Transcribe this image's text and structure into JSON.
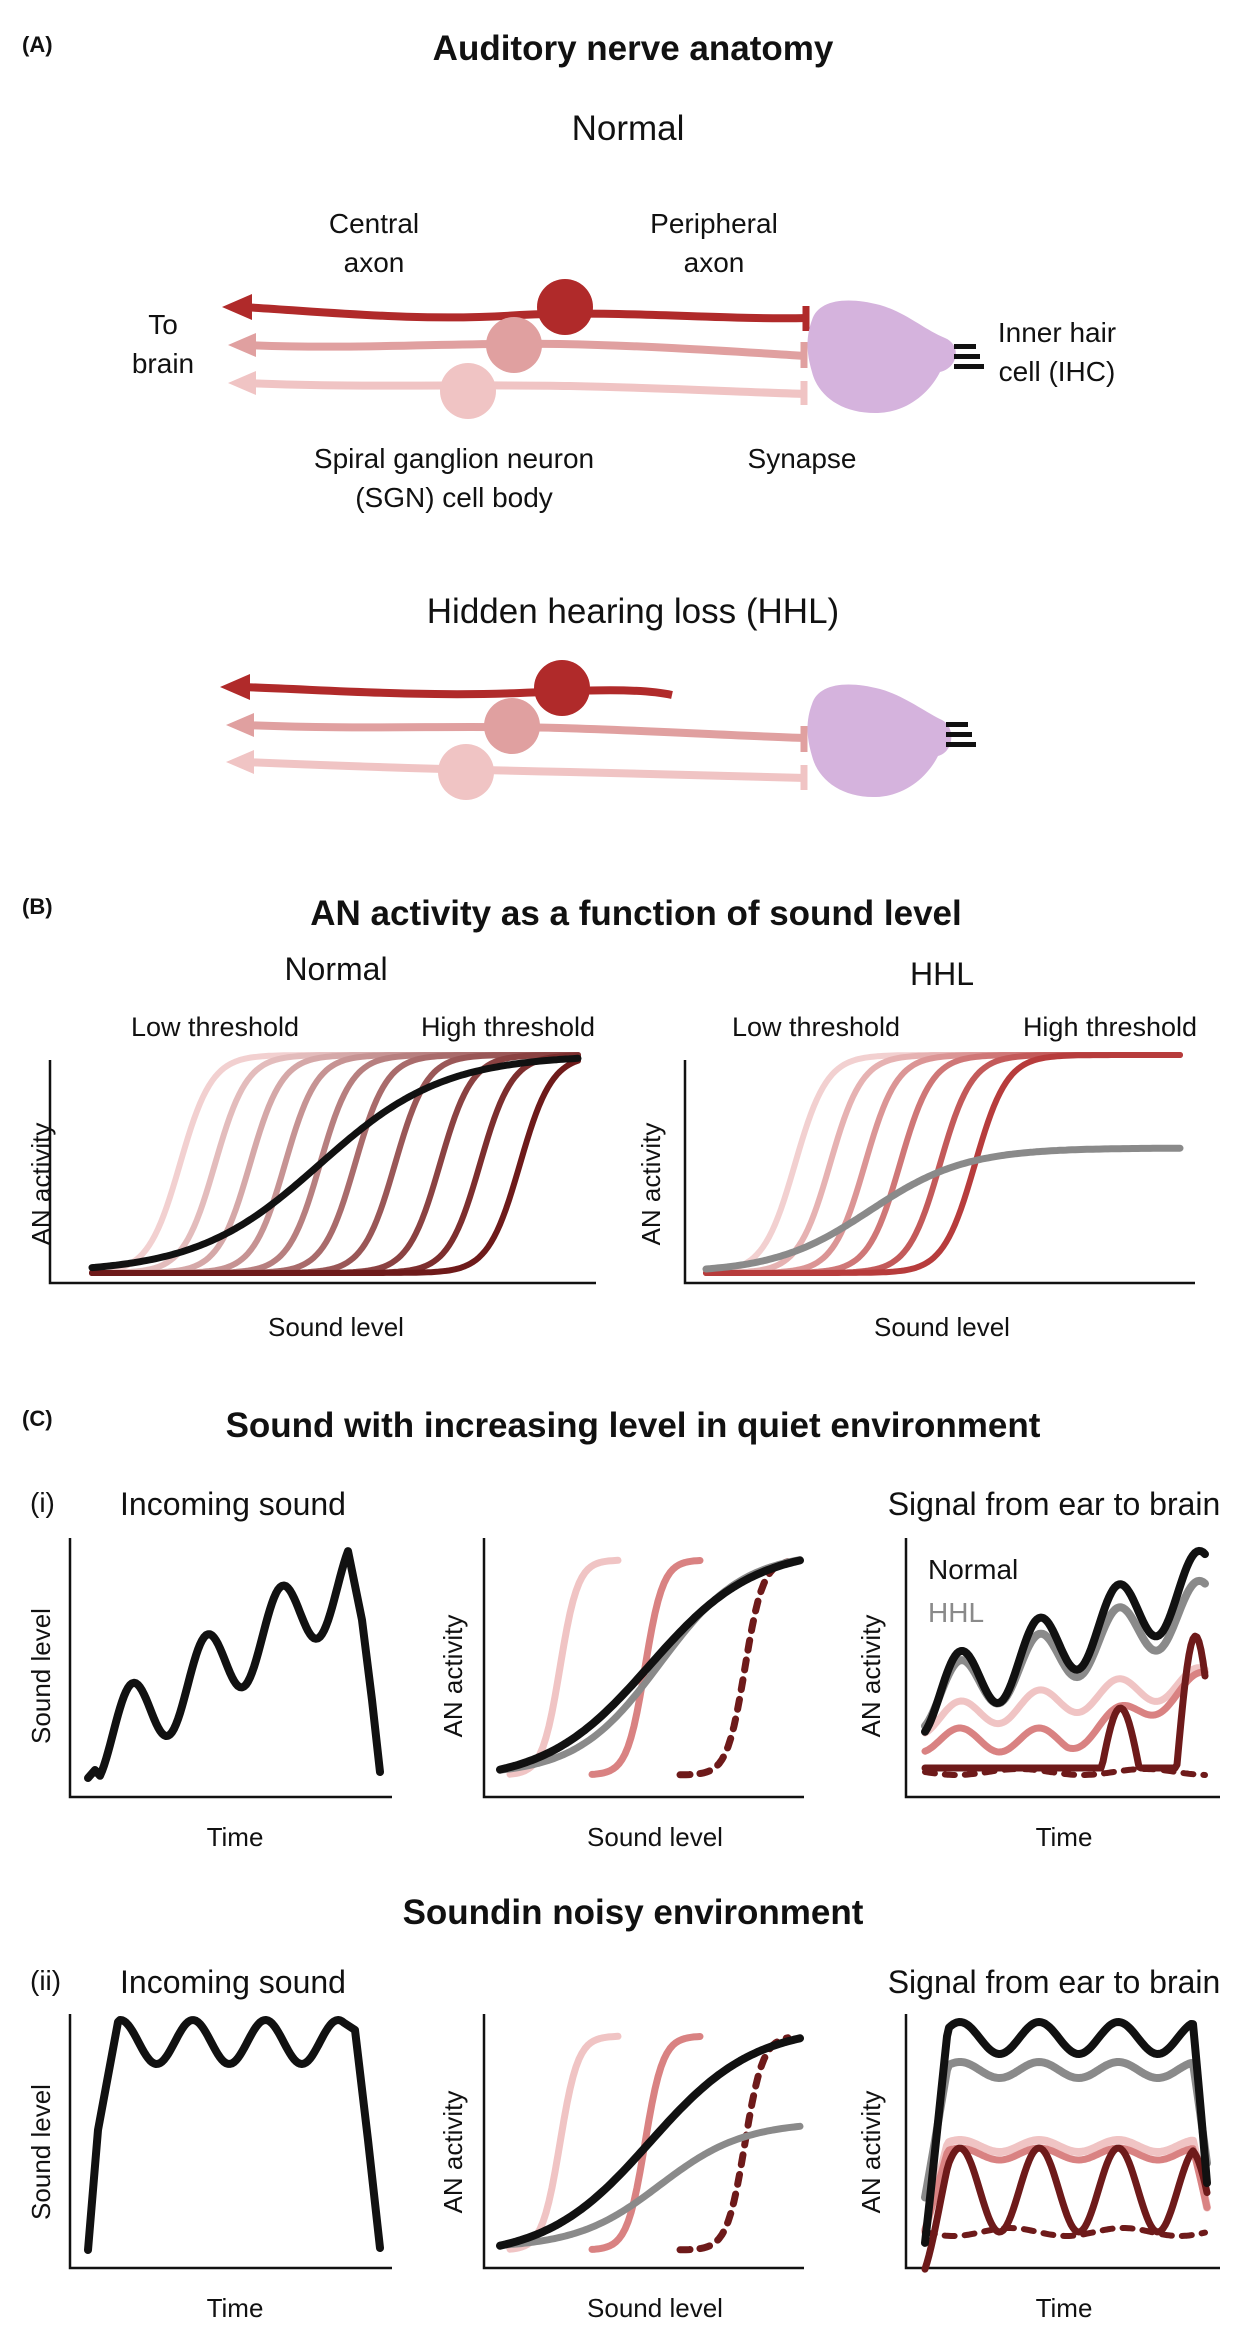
{
  "colors": {
    "dark_red": "#b02a2a",
    "mid_red": "#d98282",
    "light_red": "#f0c4c4",
    "hair_cell": "#d5b3dd",
    "normal_black": "#111111",
    "hhl_gray": "#8a8a8a",
    "maroon": "#6e1a1a"
  },
  "panel_a": {
    "label": "(A)",
    "title": "Auditory nerve anatomy",
    "normal_title": "Normal",
    "hhl_title": "Hidden hearing loss (HHL)",
    "central_axon": [
      "Central",
      "axon"
    ],
    "peripheral_axon": [
      "Peripheral",
      "axon"
    ],
    "to_brain": [
      "To",
      "brain"
    ],
    "ihc": [
      "Inner hair",
      "cell (IHC)"
    ],
    "sgn": [
      "Spiral ganglion neuron",
      "(SGN) cell body"
    ],
    "synapse": "Synapse"
  },
  "panel_b": {
    "label": "(B)",
    "title": "AN activity as a function of sound level",
    "left": {
      "title": "Normal",
      "low_threshold": "Low threshold",
      "high_threshold": "High threshold",
      "ylabel": "AN activity",
      "xlabel": "Sound level"
    },
    "right": {
      "title": "HHL",
      "low_threshold": "Low threshold",
      "high_threshold": "High threshold",
      "ylabel": "AN activity",
      "xlabel": "Sound level"
    }
  },
  "panel_c": {
    "label": "(C)",
    "title": "Sound with increasing level in quiet environment",
    "row1": {
      "label": "(i)",
      "incoming": "Incoming sound",
      "signal": "Signal from ear to brain",
      "legend_normal": "Normal",
      "legend_hhl": "HHL",
      "y1": "Sound level",
      "x1": "Time",
      "y2": "AN activity",
      "x2": "Sound level",
      "y3": "AN activity",
      "x3": "Time"
    },
    "row2_title": "Soundin noisy environment",
    "row2": {
      "label": "(ii)",
      "incoming": "Incoming sound",
      "signal": "Signal from ear to brain",
      "y1": "Sound level",
      "x1": "Time",
      "y2": "AN activity",
      "x2": "Sound level",
      "y3": "AN activity",
      "x3": "Time"
    }
  }
}
